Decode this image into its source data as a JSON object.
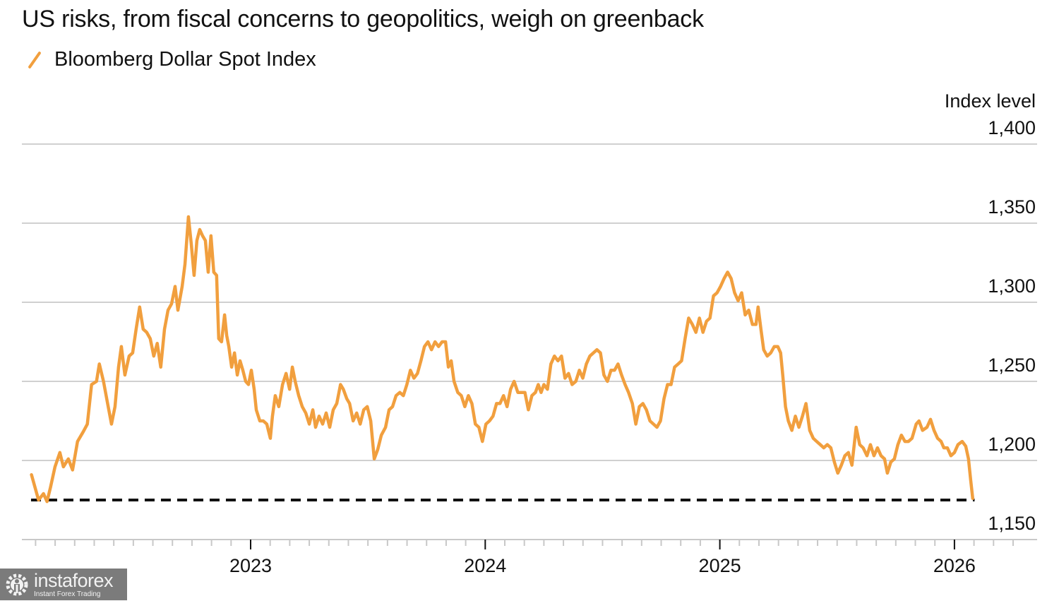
{
  "chart_data": {
    "type": "line",
    "title": "US risks, from fiscal concerns to geopolitics, weigh on greenback",
    "xlabel": "",
    "ylabel": "Index level",
    "legend": {
      "position": "top-left",
      "entries": [
        "Bloomberg Dollar Spot Index"
      ]
    },
    "grid": true,
    "ylim": [
      1150,
      1400
    ],
    "yticks": [
      1150,
      1200,
      1250,
      1300,
      1350,
      1400
    ],
    "ytick_labels": [
      "1,150",
      "1,200",
      "1,250",
      "1,300",
      "1,350",
      "1,400"
    ],
    "xlim": [
      2022.0,
      2026.3
    ],
    "xticks_major": [
      2023,
      2024,
      2025,
      2026
    ],
    "xtick_labels": [
      "2023",
      "2024",
      "2025",
      "2026"
    ],
    "xticks_minor_interval": "month",
    "reference_line": {
      "value": 1175,
      "style": "dashed",
      "color": "#111111",
      "x_start": 2022.07,
      "x_end": 2026.08
    },
    "colors": {
      "line": "#f19f3e",
      "grid": "#d0d0d0",
      "axis": "#c8c8c8"
    },
    "series": [
      {
        "name": "Bloomberg Dollar Spot Index",
        "x_unit": "fractional year",
        "points": [
          [
            2022.066,
            1191
          ],
          [
            2022.081,
            1183
          ],
          [
            2022.096,
            1175
          ],
          [
            2022.117,
            1179
          ],
          [
            2022.132,
            1174
          ],
          [
            2022.147,
            1183
          ],
          [
            2022.166,
            1196
          ],
          [
            2022.187,
            1205
          ],
          [
            2022.202,
            1196
          ],
          [
            2022.223,
            1201
          ],
          [
            2022.241,
            1194
          ],
          [
            2022.262,
            1212
          ],
          [
            2022.286,
            1218
          ],
          [
            2022.304,
            1223
          ],
          [
            2022.322,
            1248
          ],
          [
            2022.343,
            1250
          ],
          [
            2022.355,
            1261
          ],
          [
            2022.373,
            1250
          ],
          [
            2022.389,
            1237
          ],
          [
            2022.407,
            1223
          ],
          [
            2022.422,
            1234
          ],
          [
            2022.437,
            1259
          ],
          [
            2022.449,
            1272
          ],
          [
            2022.464,
            1254
          ],
          [
            2022.482,
            1266
          ],
          [
            2022.497,
            1268
          ],
          [
            2022.512,
            1283
          ],
          [
            2022.527,
            1297
          ],
          [
            2022.542,
            1283
          ],
          [
            2022.557,
            1281
          ],
          [
            2022.572,
            1277
          ],
          [
            2022.587,
            1266
          ],
          [
            2022.602,
            1274
          ],
          [
            2022.617,
            1259
          ],
          [
            2022.633,
            1283
          ],
          [
            2022.648,
            1295
          ],
          [
            2022.663,
            1299
          ],
          [
            2022.678,
            1310
          ],
          [
            2022.69,
            1295
          ],
          [
            2022.708,
            1310
          ],
          [
            2022.72,
            1324
          ],
          [
            2022.735,
            1354
          ],
          [
            2022.747,
            1337
          ],
          [
            2022.759,
            1317
          ],
          [
            2022.771,
            1339
          ],
          [
            2022.783,
            1346
          ],
          [
            2022.795,
            1342
          ],
          [
            2022.807,
            1339
          ],
          [
            2022.819,
            1319
          ],
          [
            2022.831,
            1342
          ],
          [
            2022.843,
            1319
          ],
          [
            2022.855,
            1317
          ],
          [
            2022.864,
            1277
          ],
          [
            2022.876,
            1275
          ],
          [
            2022.889,
            1292
          ],
          [
            2022.898,
            1279
          ],
          [
            2022.907,
            1272
          ],
          [
            2022.919,
            1259
          ],
          [
            2022.931,
            1268
          ],
          [
            2022.943,
            1254
          ],
          [
            2022.955,
            1263
          ],
          [
            2022.967,
            1257
          ],
          [
            2022.979,
            1250
          ],
          [
            2022.991,
            1248
          ],
          [
            2023.003,
            1257
          ],
          [
            2023.015,
            1245
          ],
          [
            2023.024,
            1232
          ],
          [
            2023.039,
            1225
          ],
          [
            2023.054,
            1225
          ],
          [
            2023.069,
            1223
          ],
          [
            2023.084,
            1214
          ],
          [
            2023.093,
            1228
          ],
          [
            2023.105,
            1241
          ],
          [
            2023.12,
            1234
          ],
          [
            2023.136,
            1248
          ],
          [
            2023.151,
            1255
          ],
          [
            2023.166,
            1245
          ],
          [
            2023.178,
            1259
          ],
          [
            2023.19,
            1250
          ],
          [
            2023.205,
            1241
          ],
          [
            2023.22,
            1234
          ],
          [
            2023.235,
            1230
          ],
          [
            2023.25,
            1223
          ],
          [
            2023.265,
            1232
          ],
          [
            2023.277,
            1221
          ],
          [
            2023.292,
            1228
          ],
          [
            2023.307,
            1223
          ],
          [
            2023.322,
            1230
          ],
          [
            2023.337,
            1221
          ],
          [
            2023.352,
            1232
          ],
          [
            2023.367,
            1236
          ],
          [
            2023.383,
            1248
          ],
          [
            2023.395,
            1245
          ],
          [
            2023.41,
            1239
          ],
          [
            2023.422,
            1236
          ],
          [
            2023.437,
            1225
          ],
          [
            2023.452,
            1230
          ],
          [
            2023.467,
            1223
          ],
          [
            2023.482,
            1232
          ],
          [
            2023.497,
            1234
          ],
          [
            2023.512,
            1225
          ],
          [
            2023.527,
            1201
          ],
          [
            2023.542,
            1207
          ],
          [
            2023.557,
            1216
          ],
          [
            2023.575,
            1221
          ],
          [
            2023.59,
            1232
          ],
          [
            2023.605,
            1234
          ],
          [
            2023.62,
            1241
          ],
          [
            2023.636,
            1243
          ],
          [
            2023.651,
            1241
          ],
          [
            2023.666,
            1248
          ],
          [
            2023.681,
            1257
          ],
          [
            2023.696,
            1252
          ],
          [
            2023.711,
            1255
          ],
          [
            2023.726,
            1263
          ],
          [
            2023.741,
            1272
          ],
          [
            2023.756,
            1275
          ],
          [
            2023.771,
            1270
          ],
          [
            2023.786,
            1275
          ],
          [
            2023.801,
            1272
          ],
          [
            2023.816,
            1275
          ],
          [
            2023.831,
            1275
          ],
          [
            2023.843,
            1259
          ],
          [
            2023.855,
            1263
          ],
          [
            2023.867,
            1250
          ],
          [
            2023.883,
            1243
          ],
          [
            2023.898,
            1241
          ],
          [
            2023.913,
            1234
          ],
          [
            2023.928,
            1241
          ],
          [
            2023.943,
            1236
          ],
          [
            2023.958,
            1223
          ],
          [
            2023.973,
            1221
          ],
          [
            2023.988,
            1212
          ],
          [
            2024.003,
            1223
          ],
          [
            2024.018,
            1225
          ],
          [
            2024.033,
            1228
          ],
          [
            2024.048,
            1236
          ],
          [
            2024.063,
            1236
          ],
          [
            2024.078,
            1241
          ],
          [
            2024.093,
            1234
          ],
          [
            2024.108,
            1245
          ],
          [
            2024.123,
            1250
          ],
          [
            2024.139,
            1243
          ],
          [
            2024.154,
            1243
          ],
          [
            2024.169,
            1243
          ],
          [
            2024.184,
            1232
          ],
          [
            2024.199,
            1241
          ],
          [
            2024.214,
            1243
          ],
          [
            2024.226,
            1248
          ],
          [
            2024.238,
            1243
          ],
          [
            2024.25,
            1248
          ],
          [
            2024.265,
            1245
          ],
          [
            2024.28,
            1261
          ],
          [
            2024.295,
            1266
          ],
          [
            2024.31,
            1263
          ],
          [
            2024.325,
            1266
          ],
          [
            2024.34,
            1252
          ],
          [
            2024.355,
            1255
          ],
          [
            2024.37,
            1248
          ],
          [
            2024.386,
            1250
          ],
          [
            2024.401,
            1257
          ],
          [
            2024.416,
            1252
          ],
          [
            2024.431,
            1261
          ],
          [
            2024.446,
            1266
          ],
          [
            2024.461,
            1268
          ],
          [
            2024.476,
            1270
          ],
          [
            2024.491,
            1268
          ],
          [
            2024.506,
            1254
          ],
          [
            2024.521,
            1250
          ],
          [
            2024.536,
            1257
          ],
          [
            2024.551,
            1257
          ],
          [
            2024.566,
            1261
          ],
          [
            2024.581,
            1254
          ],
          [
            2024.596,
            1248
          ],
          [
            2024.611,
            1243
          ],
          [
            2024.627,
            1236
          ],
          [
            2024.642,
            1223
          ],
          [
            2024.657,
            1234
          ],
          [
            2024.672,
            1236
          ],
          [
            2024.687,
            1232
          ],
          [
            2024.702,
            1225
          ],
          [
            2024.717,
            1223
          ],
          [
            2024.732,
            1221
          ],
          [
            2024.747,
            1225
          ],
          [
            2024.762,
            1239
          ],
          [
            2024.777,
            1248
          ],
          [
            2024.792,
            1248
          ],
          [
            2024.807,
            1259
          ],
          [
            2024.822,
            1261
          ],
          [
            2024.837,
            1263
          ],
          [
            2024.852,
            1277
          ],
          [
            2024.867,
            1290
          ],
          [
            2024.883,
            1286
          ],
          [
            2024.898,
            1281
          ],
          [
            2024.913,
            1290
          ],
          [
            2024.928,
            1281
          ],
          [
            2024.943,
            1288
          ],
          [
            2024.958,
            1290
          ],
          [
            2024.973,
            1304
          ],
          [
            2024.988,
            1306
          ],
          [
            2025.003,
            1310
          ],
          [
            2025.018,
            1315
          ],
          [
            2025.033,
            1319
          ],
          [
            2025.048,
            1315
          ],
          [
            2025.063,
            1306
          ],
          [
            2025.078,
            1301
          ],
          [
            2025.093,
            1306
          ],
          [
            2025.108,
            1292
          ],
          [
            2025.123,
            1295
          ],
          [
            2025.139,
            1286
          ],
          [
            2025.154,
            1286
          ],
          [
            2025.163,
            1297
          ],
          [
            2025.175,
            1283
          ],
          [
            2025.187,
            1270
          ],
          [
            2025.202,
            1266
          ],
          [
            2025.217,
            1268
          ],
          [
            2025.232,
            1272
          ],
          [
            2025.247,
            1272
          ],
          [
            2025.259,
            1268
          ],
          [
            2025.268,
            1254
          ],
          [
            2025.28,
            1234
          ],
          [
            2025.292,
            1225
          ],
          [
            2025.307,
            1219
          ],
          [
            2025.322,
            1228
          ],
          [
            2025.337,
            1221
          ],
          [
            2025.352,
            1228
          ],
          [
            2025.367,
            1236
          ],
          [
            2025.383,
            1219
          ],
          [
            2025.398,
            1214
          ],
          [
            2025.413,
            1212
          ],
          [
            2025.428,
            1210
          ],
          [
            2025.443,
            1208
          ],
          [
            2025.458,
            1210
          ],
          [
            2025.473,
            1208
          ],
          [
            2025.488,
            1199
          ],
          [
            2025.503,
            1192
          ],
          [
            2025.518,
            1197
          ],
          [
            2025.533,
            1203
          ],
          [
            2025.548,
            1205
          ],
          [
            2025.563,
            1197
          ],
          [
            2025.581,
            1221
          ],
          [
            2025.596,
            1210
          ],
          [
            2025.611,
            1208
          ],
          [
            2025.627,
            1203
          ],
          [
            2025.642,
            1210
          ],
          [
            2025.657,
            1203
          ],
          [
            2025.672,
            1208
          ],
          [
            2025.687,
            1203
          ],
          [
            2025.702,
            1201
          ],
          [
            2025.714,
            1192
          ],
          [
            2025.729,
            1199
          ],
          [
            2025.744,
            1201
          ],
          [
            2025.759,
            1210
          ],
          [
            2025.774,
            1216
          ],
          [
            2025.789,
            1212
          ],
          [
            2025.804,
            1212
          ],
          [
            2025.819,
            1214
          ],
          [
            2025.837,
            1223
          ],
          [
            2025.849,
            1225
          ],
          [
            2025.864,
            1219
          ],
          [
            2025.883,
            1221
          ],
          [
            2025.898,
            1226
          ],
          [
            2025.913,
            1219
          ],
          [
            2025.928,
            1214
          ],
          [
            2025.943,
            1212
          ],
          [
            2025.955,
            1208
          ],
          [
            2025.97,
            1208
          ],
          [
            2025.985,
            1203
          ],
          [
            2026.0,
            1205
          ],
          [
            2026.015,
            1210
          ],
          [
            2026.033,
            1212
          ],
          [
            2026.048,
            1209
          ],
          [
            2026.06,
            1201
          ],
          [
            2026.069,
            1188
          ],
          [
            2026.078,
            1176
          ]
        ]
      }
    ]
  },
  "watermark": {
    "brand": "instaforex",
    "tagline": "Instant Forex Trading",
    "icon": "gear-person-icon"
  }
}
